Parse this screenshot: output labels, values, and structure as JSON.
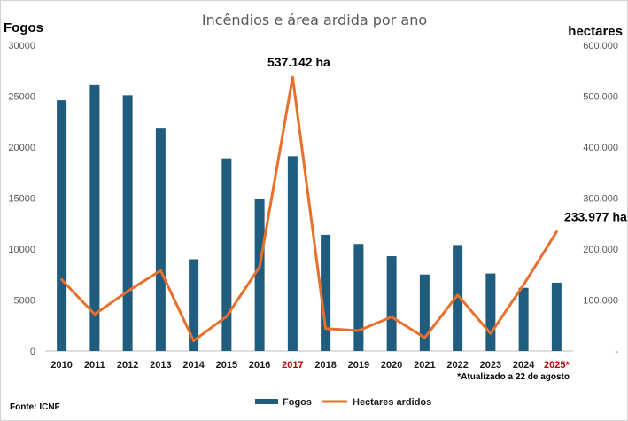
{
  "chart_data": {
    "type": "bar",
    "title": "Incêndios e área ardida por ano",
    "ylabel_left": "Fogos",
    "ylabel_right": "hectares",
    "categories": [
      "2010",
      "2011",
      "2012",
      "2013",
      "2014",
      "2015",
      "2016",
      "2017",
      "2018",
      "2019",
      "2020",
      "2021",
      "2022",
      "2023",
      "2024",
      "2025*"
    ],
    "highlight_categories": [
      "2017",
      "2025*"
    ],
    "series": [
      {
        "name": "Fogos",
        "type": "bar",
        "axis": "left",
        "color": "#1f5c7d",
        "values": [
          24600,
          26100,
          25100,
          21900,
          9000,
          18900,
          14900,
          19100,
          11400,
          10500,
          9300,
          7500,
          10400,
          7600,
          6200,
          6700
        ]
      },
      {
        "name": "Hectares ardidos",
        "type": "line",
        "axis": "right",
        "color": "#e8702a",
        "values": [
          140000,
          72000,
          117000,
          158000,
          20000,
          68000,
          165000,
          537142,
          44000,
          40000,
          67000,
          26000,
          110000,
          34000,
          130000,
          233977
        ]
      }
    ],
    "left_axis": {
      "min": 0,
      "max": 30000,
      "ticks": [
        "0",
        "5000",
        "10000",
        "15000",
        "20000",
        "25000",
        "30000"
      ]
    },
    "right_axis": {
      "min": 0,
      "max": 600000,
      "ticks": [
        "-",
        "100.000",
        "200.000",
        "300.000",
        "400.000",
        "500.000",
        "600.000"
      ]
    },
    "annotations": [
      {
        "text": "537.142 ha",
        "category": "2017"
      },
      {
        "text": "233.977 ha",
        "category": "2025*"
      }
    ],
    "footnote": "*Atualizado a 22 de agosto",
    "source": "Fonte: ICNF",
    "legend": {
      "placement": "bottom-center"
    },
    "grid": false
  }
}
